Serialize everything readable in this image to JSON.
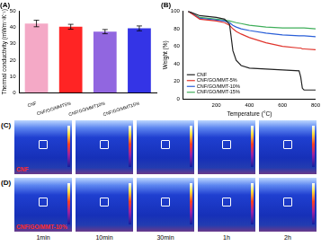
{
  "chart_data": [
    {
      "type": "bar",
      "title": "(A)",
      "categories": [
        "CNF",
        "CNF/GO/MMT5%",
        "CNF/GO/MMT10%",
        "CNF/GO/MMT15%"
      ],
      "values": [
        42.5,
        40.5,
        37.5,
        39.5
      ],
      "errors": [
        2,
        1.5,
        1.3,
        1.5
      ],
      "colors": [
        "#f4a9c6",
        "#ff2424",
        "#9166e0",
        "#3434e6"
      ],
      "y_label": "Thermal conductivity (mWm⁻¹K⁻¹)",
      "ylim": [
        0,
        50
      ],
      "yticks": [
        0,
        10,
        20,
        30,
        40,
        50
      ],
      "grid": false
    },
    {
      "type": "line",
      "title": "(B)",
      "x_label": "Temperature (°C)",
      "y_label": "Weight (%)",
      "x": [
        30,
        100,
        200,
        250,
        280,
        300,
        320,
        350,
        400,
        500,
        600,
        700,
        710,
        720,
        730,
        800
      ],
      "series": [
        {
          "name": "CNF",
          "color": "#222222",
          "values": [
            100,
            95,
            93,
            91,
            85,
            55,
            44,
            38,
            35,
            34,
            33,
            32,
            25,
            12,
            10,
            10
          ]
        },
        {
          "name": "CNF/GO/MMT-5%",
          "color": "#e0342c",
          "values": [
            100,
            91,
            89,
            87,
            84,
            80,
            77,
            74,
            70,
            64,
            60,
            58,
            58,
            57,
            57,
            56
          ]
        },
        {
          "name": "CNF/GO/MMT-10%",
          "color": "#2a5fd8",
          "values": [
            100,
            92,
            90,
            89,
            87,
            84,
            82,
            80,
            78,
            75,
            73,
            72,
            72,
            72,
            72,
            71
          ]
        },
        {
          "name": "CNF/GO/MMT-15%",
          "color": "#3fae5a",
          "values": [
            100,
            93,
            91,
            90,
            89,
            88,
            87,
            86,
            84,
            82,
            81,
            81,
            81,
            81,
            81,
            80
          ]
        }
      ],
      "xlim": [
        0,
        800
      ],
      "xticks": [
        200,
        400,
        600,
        800
      ],
      "ylim": [
        0,
        100
      ],
      "yticks": [
        0,
        20,
        40,
        60,
        80,
        100
      ],
      "legend": "lower left",
      "grid": false
    }
  ],
  "thermal_images": {
    "rows": [
      {
        "panel_label": "(C)",
        "label": "CNF"
      },
      {
        "panel_label": "(D)",
        "label": "CNF/GO/MMT-10%"
      }
    ],
    "times": [
      "1min",
      "10min",
      "30min",
      "1h",
      "2h"
    ]
  }
}
